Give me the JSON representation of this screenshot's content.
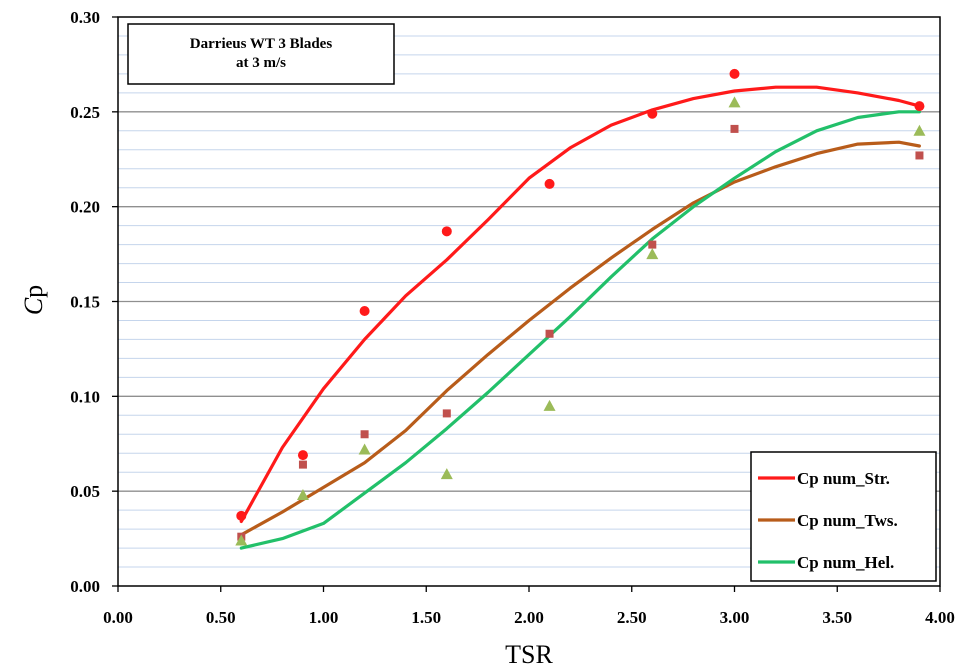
{
  "chart_data": {
    "type": "scatter",
    "title_lines": [
      "Darrieus WT 3 Blades",
      "at 3 m/s"
    ],
    "xlabel": "TSR",
    "ylabel_main": "C",
    "ylabel_sub": "p",
    "xlim": [
      0.0,
      4.0
    ],
    "ylim": [
      0.0,
      0.3
    ],
    "x_ticks": [
      0.0,
      0.5,
      1.0,
      1.5,
      2.0,
      2.5,
      3.0,
      3.5,
      4.0
    ],
    "x_tick_labels": [
      "0.00",
      "0.50",
      "1.00",
      "1.50",
      "2.00",
      "2.50",
      "3.00",
      "3.50",
      "4.00"
    ],
    "y_ticks": [
      0.0,
      0.05,
      0.1,
      0.15,
      0.2,
      0.25,
      0.3
    ],
    "y_tick_labels": [
      "0.00",
      "0.05",
      "0.10",
      "0.15",
      "0.20",
      "0.25",
      "0.30"
    ],
    "grid": "horizontal",
    "legend_position": "bottom-right",
    "series": [
      {
        "name": "Cp num_Str.",
        "color": "#ff1a1a",
        "marker": "circle",
        "points": [
          [
            0.6,
            0.037
          ],
          [
            0.9,
            0.069
          ],
          [
            1.2,
            0.145
          ],
          [
            1.6,
            0.187
          ],
          [
            2.1,
            0.212
          ],
          [
            2.6,
            0.249
          ],
          [
            3.0,
            0.27
          ],
          [
            3.9,
            0.253
          ]
        ],
        "fit": [
          [
            0.6,
            0.034
          ],
          [
            0.8,
            0.073
          ],
          [
            1.0,
            0.104
          ],
          [
            1.2,
            0.13
          ],
          [
            1.4,
            0.153
          ],
          [
            1.6,
            0.172
          ],
          [
            1.8,
            0.193
          ],
          [
            2.0,
            0.215
          ],
          [
            2.2,
            0.231
          ],
          [
            2.4,
            0.243
          ],
          [
            2.6,
            0.251
          ],
          [
            2.8,
            0.257
          ],
          [
            3.0,
            0.261
          ],
          [
            3.2,
            0.263
          ],
          [
            3.4,
            0.263
          ],
          [
            3.6,
            0.26
          ],
          [
            3.8,
            0.256
          ],
          [
            3.9,
            0.253
          ]
        ]
      },
      {
        "name": "Cp num_Tws.",
        "color": "#b85c1a",
        "marker": "square",
        "marker_color": "#c0504d",
        "points": [
          [
            0.6,
            0.026
          ],
          [
            0.9,
            0.064
          ],
          [
            1.2,
            0.08
          ],
          [
            1.6,
            0.091
          ],
          [
            2.1,
            0.133
          ],
          [
            2.6,
            0.18
          ],
          [
            3.0,
            0.241
          ],
          [
            3.9,
            0.227
          ]
        ],
        "fit": [
          [
            0.6,
            0.027
          ],
          [
            0.8,
            0.039
          ],
          [
            1.0,
            0.052
          ],
          [
            1.2,
            0.065
          ],
          [
            1.4,
            0.082
          ],
          [
            1.6,
            0.103
          ],
          [
            1.8,
            0.122
          ],
          [
            2.0,
            0.14
          ],
          [
            2.2,
            0.157
          ],
          [
            2.4,
            0.173
          ],
          [
            2.6,
            0.188
          ],
          [
            2.8,
            0.202
          ],
          [
            3.0,
            0.213
          ],
          [
            3.2,
            0.221
          ],
          [
            3.4,
            0.228
          ],
          [
            3.6,
            0.233
          ],
          [
            3.8,
            0.234
          ],
          [
            3.9,
            0.232
          ]
        ]
      },
      {
        "name": "Cp num_Hel.",
        "color": "#22c06a",
        "marker": "triangle",
        "marker_color": "#9bbb59",
        "points": [
          [
            0.6,
            0.024
          ],
          [
            0.9,
            0.048
          ],
          [
            1.2,
            0.072
          ],
          [
            1.6,
            0.059
          ],
          [
            2.1,
            0.095
          ],
          [
            2.6,
            0.175
          ],
          [
            3.0,
            0.255
          ],
          [
            3.9,
            0.24
          ]
        ],
        "fit": [
          [
            0.6,
            0.02
          ],
          [
            0.8,
            0.025
          ],
          [
            1.0,
            0.033
          ],
          [
            1.2,
            0.049
          ],
          [
            1.4,
            0.065
          ],
          [
            1.6,
            0.083
          ],
          [
            1.8,
            0.102
          ],
          [
            2.0,
            0.122
          ],
          [
            2.2,
            0.142
          ],
          [
            2.4,
            0.163
          ],
          [
            2.6,
            0.183
          ],
          [
            2.8,
            0.2
          ],
          [
            3.0,
            0.215
          ],
          [
            3.2,
            0.229
          ],
          [
            3.4,
            0.24
          ],
          [
            3.6,
            0.247
          ],
          [
            3.8,
            0.25
          ],
          [
            3.9,
            0.25
          ]
        ]
      }
    ]
  }
}
